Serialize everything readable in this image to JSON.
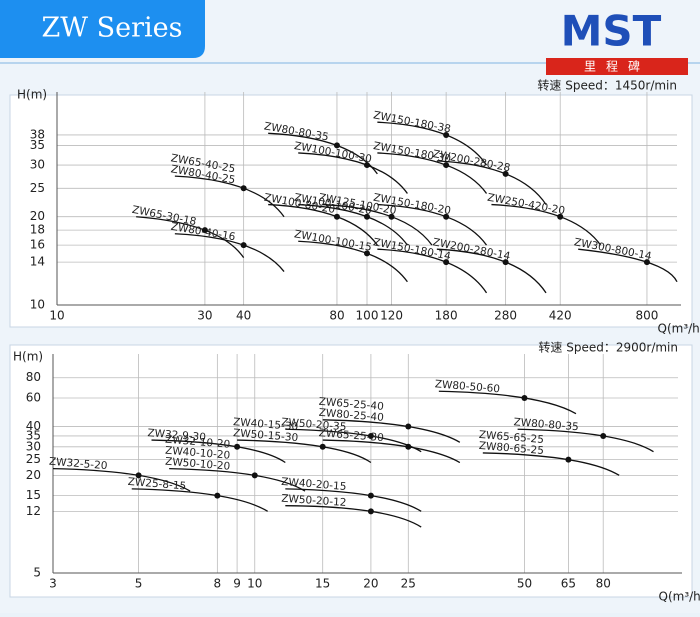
{
  "header": {
    "title": "ZW Series",
    "logo": "MST",
    "logo_sub": "里程碑"
  },
  "chart_data": [
    {
      "type": "line",
      "subtitle": "转速 Speed：1450r/min",
      "ylabel": "H(m)",
      "xlabel": "Q(m³/h)",
      "xscale": "log",
      "yscale": "log",
      "grid": true,
      "xlim": [
        10,
        1000
      ],
      "xticks": [
        10,
        30,
        40,
        80,
        100,
        120,
        180,
        280,
        420,
        800
      ],
      "ylim": [
        10,
        50
      ],
      "yticks": [
        10,
        14,
        16,
        18,
        20,
        25,
        30,
        35,
        38
      ],
      "series": [
        {
          "names": [
            "ZW65-30-18"
          ],
          "color": "#111111",
          "x": [
            18,
            30,
            40
          ],
          "values": [
            20,
            18,
            14.5
          ]
        },
        {
          "names": [
            "ZW80-40-16"
          ],
          "color": "#111111",
          "x": [
            24,
            40,
            54
          ],
          "values": [
            17.5,
            16,
            13
          ]
        },
        {
          "names": [
            "ZW65-40-25",
            "ZW80-40-25"
          ],
          "color": "#111111",
          "x": [
            24,
            40,
            54
          ],
          "values": [
            27.5,
            25,
            20
          ]
        },
        {
          "names": [
            "ZW80-80-35"
          ],
          "color": "#111111",
          "x": [
            48,
            80,
            108
          ],
          "values": [
            38.5,
            35,
            28
          ]
        },
        {
          "names": [
            "ZW100-100-30"
          ],
          "color": "#111111",
          "x": [
            60,
            100,
            135
          ],
          "values": [
            33,
            30,
            24
          ]
        },
        {
          "names": [
            "ZW100-80-20"
          ],
          "color": "#111111",
          "x": [
            48,
            80,
            108
          ],
          "values": [
            22,
            20,
            16
          ]
        },
        {
          "names": [
            "ZW100-100-20"
          ],
          "color": "#111111",
          "x": [
            60,
            100,
            135
          ],
          "values": [
            22,
            20,
            16
          ]
        },
        {
          "names": [
            "ZW125-100-20"
          ],
          "color": "#111111",
          "x": [
            72,
            120,
            162
          ],
          "values": [
            22,
            20,
            16
          ]
        },
        {
          "names": [
            "ZW100-100-15"
          ],
          "color": "#111111",
          "x": [
            60,
            100,
            135
          ],
          "values": [
            16.5,
            15,
            12
          ]
        },
        {
          "names": [
            "ZW150-180-38"
          ],
          "color": "#111111",
          "x": [
            108,
            180,
            243
          ],
          "values": [
            42,
            38,
            30
          ]
        },
        {
          "names": [
            "ZW150-180-30"
          ],
          "color": "#111111",
          "x": [
            108,
            180,
            243
          ],
          "values": [
            33,
            30,
            24
          ]
        },
        {
          "names": [
            "ZW150-180-20"
          ],
          "color": "#111111",
          "x": [
            108,
            180,
            243
          ],
          "values": [
            22,
            20,
            16
          ]
        },
        {
          "names": [
            "ZW150-180-14"
          ],
          "color": "#111111",
          "x": [
            108,
            180,
            243
          ],
          "values": [
            15.5,
            14,
            11
          ]
        },
        {
          "names": [
            "ZW200-280-28"
          ],
          "color": "#111111",
          "x": [
            168,
            280,
            378
          ],
          "values": [
            31,
            28,
            22
          ]
        },
        {
          "names": [
            "ZW200-280-14"
          ],
          "color": "#111111",
          "x": [
            168,
            280,
            378
          ],
          "values": [
            15.5,
            14,
            11
          ]
        },
        {
          "names": [
            "ZW250-420-20"
          ],
          "color": "#111111",
          "x": [
            252,
            420,
            567
          ],
          "values": [
            22,
            20,
            16
          ]
        },
        {
          "names": [
            "ZW300-800-14"
          ],
          "color": "#111111",
          "x": [
            480,
            800,
            1000
          ],
          "values": [
            15.5,
            14,
            12
          ]
        }
      ]
    },
    {
      "type": "line",
      "subtitle": "转速 Speed：2900r/min",
      "ylabel": "H(m)",
      "xlabel": "Q(m³/h)",
      "xscale": "log",
      "yscale": "log",
      "grid": true,
      "xlim": [
        3,
        125
      ],
      "xticks": [
        3,
        5,
        8,
        9,
        10,
        15,
        20,
        25,
        50,
        65,
        80
      ],
      "ylim": [
        5,
        100
      ],
      "yticks": [
        5,
        12,
        15,
        20,
        25,
        30,
        35,
        40,
        60,
        80
      ],
      "series": [
        {
          "names": [
            "ZW32-5-20"
          ],
          "color": "#111111",
          "x": [
            3,
            5,
            6.8
          ],
          "values": [
            22,
            20,
            16
          ]
        },
        {
          "names": [
            "ZW25-8-15"
          ],
          "color": "#111111",
          "x": [
            4.8,
            8,
            10.8
          ],
          "values": [
            16.5,
            15,
            12
          ]
        },
        {
          "names": [
            "ZW32-9-30"
          ],
          "color": "#111111",
          "x": [
            5.4,
            9,
            12
          ],
          "values": [
            33,
            30,
            24
          ]
        },
        {
          "names": [
            "ZW32-10-20",
            "ZW40-10-20",
            "ZW50-10-20"
          ],
          "color": "#111111",
          "x": [
            6,
            10,
            13.5
          ],
          "values": [
            22,
            20,
            16
          ]
        },
        {
          "names": [
            "ZW40-15-30",
            "ZW50-15-30"
          ],
          "color": "#111111",
          "x": [
            9,
            15,
            20
          ],
          "values": [
            33,
            30,
            24
          ]
        },
        {
          "names": [
            "ZW50-20-35"
          ],
          "color": "#111111",
          "x": [
            12,
            20,
            27
          ],
          "values": [
            38.5,
            35,
            28
          ]
        },
        {
          "names": [
            "ZW65-25-40",
            "ZW80-25-40"
          ],
          "color": "#111111",
          "x": [
            15,
            25,
            34
          ],
          "values": [
            44,
            40,
            32
          ]
        },
        {
          "names": [
            "ZW65-25-30"
          ],
          "color": "#111111",
          "x": [
            15,
            25,
            34
          ],
          "values": [
            33,
            30,
            24
          ]
        },
        {
          "names": [
            "ZW40-20-15"
          ],
          "color": "#111111",
          "x": [
            12,
            20,
            27
          ],
          "values": [
            16.5,
            15,
            12
          ]
        },
        {
          "names": [
            "ZW50-20-12"
          ],
          "color": "#111111",
          "x": [
            12,
            20,
            27
          ],
          "values": [
            13,
            12,
            9.6
          ]
        },
        {
          "names": [
            "ZW80-50-60"
          ],
          "color": "#111111",
          "x": [
            30,
            50,
            68
          ],
          "values": [
            66,
            60,
            48
          ]
        },
        {
          "names": [
            "ZW80-80-35"
          ],
          "color": "#111111",
          "x": [
            48,
            80,
            108
          ],
          "values": [
            38.5,
            35,
            28
          ]
        },
        {
          "names": [
            "ZW65-65-25",
            "ZW80-65-25"
          ],
          "color": "#111111",
          "x": [
            39,
            65,
            88
          ],
          "values": [
            27.5,
            25,
            20
          ]
        }
      ]
    }
  ]
}
